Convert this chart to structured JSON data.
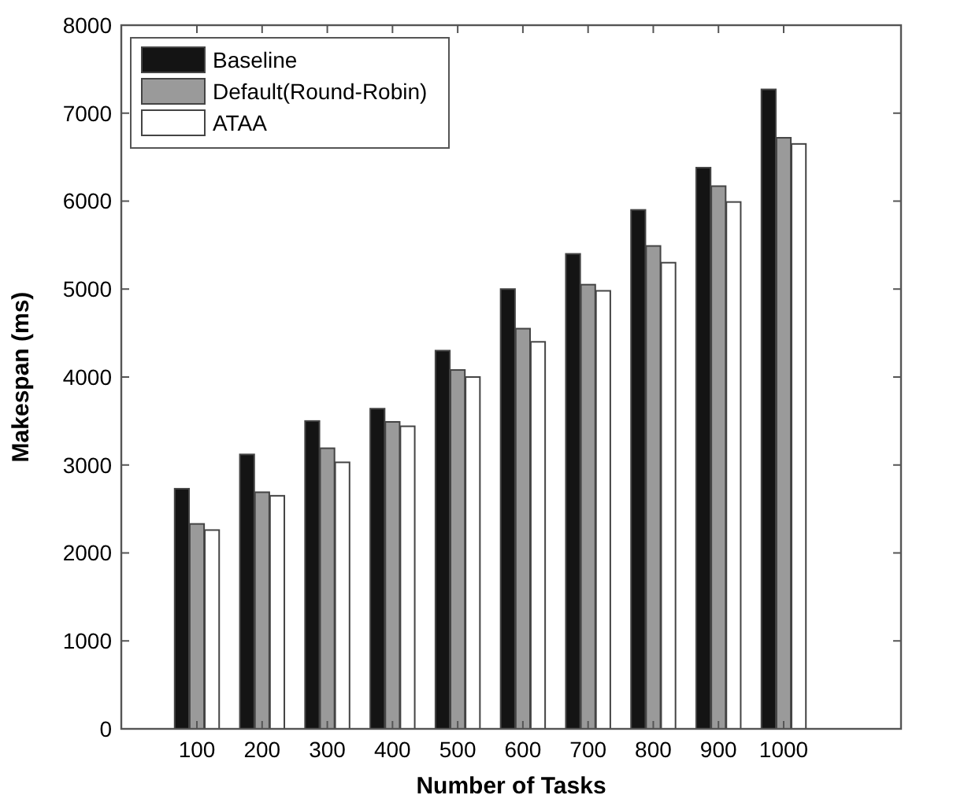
{
  "chart_data": {
    "type": "bar",
    "xlabel": "Number of Tasks",
    "ylabel": "Makespan (ms)",
    "categories": [
      "100",
      "200",
      "300",
      "400",
      "500",
      "600",
      "700",
      "800",
      "900",
      "1000"
    ],
    "series": [
      {
        "name": "Baseline",
        "color": "#141414",
        "values": [
          2730,
          3120,
          3500,
          3640,
          4300,
          5000,
          5400,
          5900,
          6380,
          7270
        ]
      },
      {
        "name": "Default(Round-Robin)",
        "color": "#9a9a9a",
        "values": [
          2330,
          2690,
          3190,
          3490,
          4080,
          4550,
          5050,
          5490,
          6170,
          6720
        ]
      },
      {
        "name": "ATAA",
        "color": "#ffffff",
        "values": [
          2260,
          2650,
          3030,
          3440,
          4000,
          4400,
          4980,
          5300,
          5990,
          6650
        ]
      }
    ],
    "ylim": [
      0,
      8000
    ],
    "yticks": [
      0,
      1000,
      2000,
      3000,
      4000,
      5000,
      6000,
      7000,
      8000
    ],
    "grid": false,
    "legend": "top left"
  }
}
